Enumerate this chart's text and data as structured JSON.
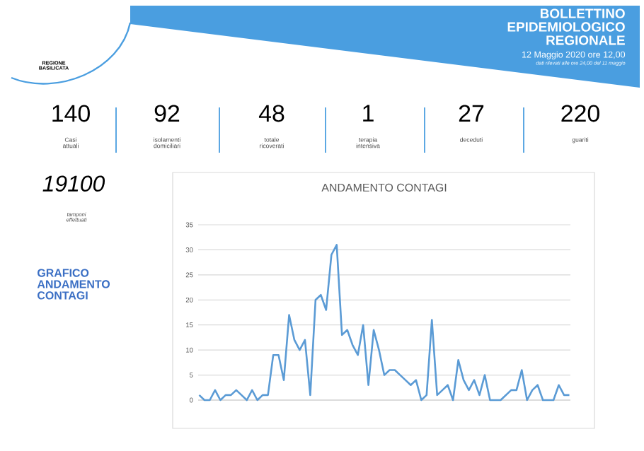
{
  "chart_data": {
    "type": "line",
    "title": "ANDAMENTO CONTAGI",
    "categories": [
      null,
      null,
      null,
      null,
      null,
      null,
      null,
      null,
      null,
      null,
      null,
      null,
      null,
      null,
      null,
      null,
      null,
      null,
      null,
      null,
      null,
      null,
      null,
      null,
      null,
      null,
      null,
      null,
      null,
      null,
      null,
      null,
      null,
      null,
      null,
      null,
      null,
      null,
      null,
      null,
      null,
      null,
      null,
      null,
      null,
      null,
      null,
      null,
      null,
      null,
      null,
      null,
      null,
      null,
      null,
      null,
      null,
      null,
      null,
      null,
      null,
      null,
      null,
      null,
      null,
      null,
      null,
      null,
      null,
      null,
      null
    ],
    "series": [
      {
        "color": "#5b9bd5",
        "values": [
          1,
          0,
          0,
          2,
          0,
          1,
          1,
          2,
          1,
          0,
          2,
          0,
          1,
          1,
          9,
          9,
          4,
          17,
          12,
          10,
          12,
          1,
          20,
          21,
          18,
          29,
          31,
          13,
          14,
          11,
          9,
          15,
          3,
          14,
          10,
          5,
          6,
          6,
          5,
          4,
          3,
          4,
          0,
          1,
          16,
          1,
          2,
          3,
          0,
          8,
          4,
          2,
          4,
          1,
          5,
          0,
          0,
          0,
          1,
          2,
          2,
          6,
          0,
          2,
          3,
          0,
          0,
          0,
          3,
          1,
          1
        ]
      }
    ],
    "ylim": [
      0,
      35
    ],
    "yticks": [
      0,
      5,
      10,
      15,
      20,
      25,
      30,
      35
    ],
    "grid": "y",
    "tick_labels": "y",
    "marker": "none",
    "line_style": "solid",
    "annotations": [
      "BOLLETTINO EPIDEMIOLOGICO REGIONALE",
      "12 Maggio 2020 ore 12,00",
      "dati rilevati alle ore 24,00 del 11 maggio",
      "REGIONE BASILICATA",
      "140",
      "Casi attuali",
      "92",
      "isolamenti domiciliari",
      "48",
      "totale ricoverati",
      "1",
      "terapia intensiva",
      "27",
      "deceduti",
      "220",
      "guariti",
      "19100",
      "tamponi effettuati",
      "GRAFICO ANDAMENTO CONTAGI"
    ]
  }
}
